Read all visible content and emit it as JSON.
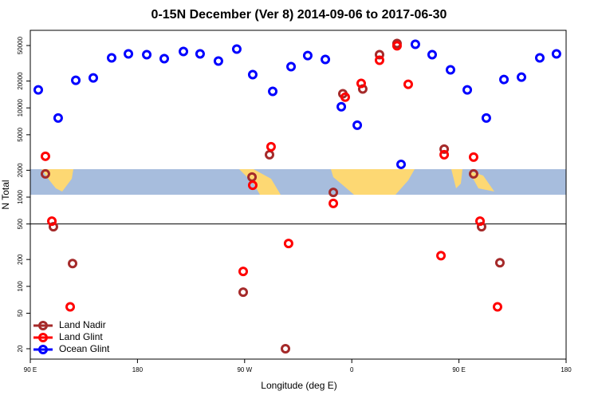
{
  "chart_data": {
    "type": "scatter",
    "title": "0-15N December (Ver 8)   2014-09-06 to 2017-06-30",
    "x_label": "Longitude (deg E)",
    "y_label": "N Total",
    "xlim": [
      90,
      540
    ],
    "xticks": [
      {
        "value": 90,
        "label": "90 E"
      },
      180,
      {
        "value": 270,
        "label": "90 W"
      },
      {
        "value": 360,
        "label": "0"
      },
      {
        "value": 450,
        "label": "90 E"
      },
      {
        "value": 540,
        "label": "180"
      }
    ],
    "ylim": [
      15.3,
      74000
    ],
    "log_y": true,
    "yticks": [
      20,
      50,
      100,
      200,
      500,
      1000,
      2000,
      5000,
      10000,
      20000,
      50000
    ],
    "hlines": [
      500
    ],
    "legend": "bottom-left",
    "series": [
      {
        "name": "Land Nadir",
        "color": "#a52a2a",
        "x": [
          102.7,
          109.4,
          125.5,
          268.8,
          276.2,
          290.9,
          304.3,
          344.5,
          352.5,
          369.2,
          383.3,
          398.0,
          437.6,
          462.3,
          469.0,
          484.4
        ],
        "values": [
          1820,
          466,
          180,
          86,
          1680,
          2990,
          20,
          1130,
          14400,
          16300,
          39500,
          52700,
          3450,
          1820,
          466,
          184
        ]
      },
      {
        "name": "Land Glint",
        "color": "#ff0000",
        "x": [
          102.7,
          108.1,
          123.5,
          268.8,
          276.8,
          292.2,
          306.9,
          344.5,
          354.5,
          367.9,
          383.3,
          398.0,
          407.4,
          434.9,
          437.6,
          462.3,
          467.7,
          482.4
        ],
        "values": [
          2870,
          538,
          59,
          147,
          1360,
          3670,
          302,
          850,
          13200,
          18800,
          34200,
          49600,
          18400,
          221,
          2990,
          2810,
          538,
          59
        ]
      },
      {
        "name": "Ocean Glint",
        "color": "#0000ff",
        "x": [
          96.7,
          113.4,
          128.2,
          142.9,
          158.3,
          172.4,
          187.8,
          202.5,
          218.6,
          232.6,
          248.0,
          263.4,
          276.8,
          293.6,
          309.0,
          323.0,
          337.8,
          351.2,
          364.6,
          401.4,
          413.4,
          427.5,
          442.9,
          457.0,
          473.0,
          487.8,
          502.5,
          517.9,
          531.9
        ],
        "values": [
          15900,
          7700,
          20400,
          21700,
          36400,
          40300,
          39500,
          35600,
          42900,
          40300,
          33500,
          45600,
          23600,
          15300,
          29000,
          38600,
          34900,
          10300,
          6400,
          2330,
          51600,
          39500,
          26700,
          15900,
          7700,
          20800,
          22100,
          36400,
          40300
        ]
      }
    ]
  }
}
